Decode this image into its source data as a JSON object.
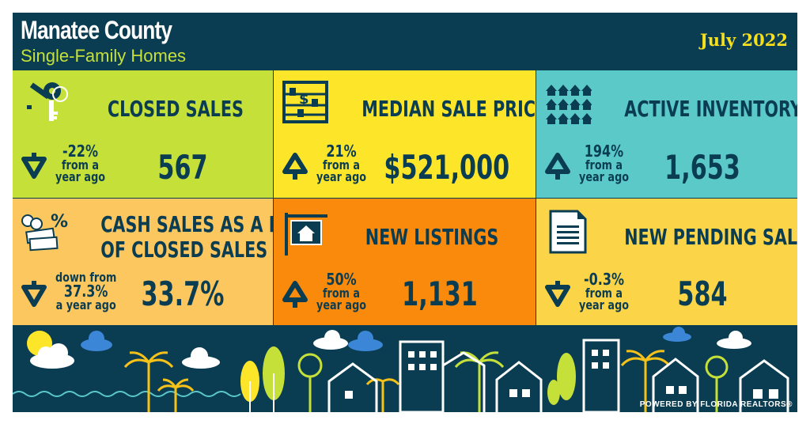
{
  "header": {
    "title": "Manatee County",
    "subtitle": "Single-Family Homes",
    "date": "July 2022"
  },
  "colors": {
    "navy": "#0b3d52",
    "lime": "#c6e03a",
    "yellow": "#fde62a",
    "teal": "#5cc9c9",
    "light_orange": "#fdc75f",
    "orange": "#fa8a0c",
    "gold": "#fcd447"
  },
  "tiles": [
    {
      "label_1": "CLOSED SALES",
      "label_2": "",
      "value": "567",
      "change_top": "-22%",
      "change_bottom_1": "from a",
      "change_bottom_2": "year ago",
      "direction": "down",
      "icon": "keys-icon"
    },
    {
      "label_1": "MEDIAN SALE PRICE",
      "label_2": "",
      "value": "$521,000",
      "change_top": "21%",
      "change_bottom_1": "from a",
      "change_bottom_2": "year ago",
      "direction": "up",
      "icon": "abacus-icon"
    },
    {
      "label_1": "ACTIVE INVENTORY",
      "label_2": "",
      "value": "1,653",
      "change_top": "194%",
      "change_bottom_1": "from a",
      "change_bottom_2": "year ago",
      "direction": "up",
      "icon": "houses-icon"
    },
    {
      "label_1": "CASH SALES AS A PCT.",
      "label_2": "OF CLOSED SALES",
      "value": "33.7%",
      "change_pre": "down from",
      "change_top": "37.3%",
      "change_bottom_2": "a year ago",
      "direction": "down",
      "icon": "cash-icon"
    },
    {
      "label_1": "NEW LISTINGS",
      "label_2": "",
      "value": "1,131",
      "change_top": "50%",
      "change_bottom_1": "from a",
      "change_bottom_2": "year ago",
      "direction": "up",
      "icon": "for-sale-sign-icon"
    },
    {
      "label_1": "NEW PENDING SALES",
      "label_2": "",
      "value": "584",
      "change_top": "-0.3%",
      "change_bottom_1": "from a",
      "change_bottom_2": "year ago",
      "direction": "down",
      "icon": "document-icon"
    }
  ],
  "footer": {
    "powered_by": "POWERED BY FLORIDA REALTORS®"
  }
}
